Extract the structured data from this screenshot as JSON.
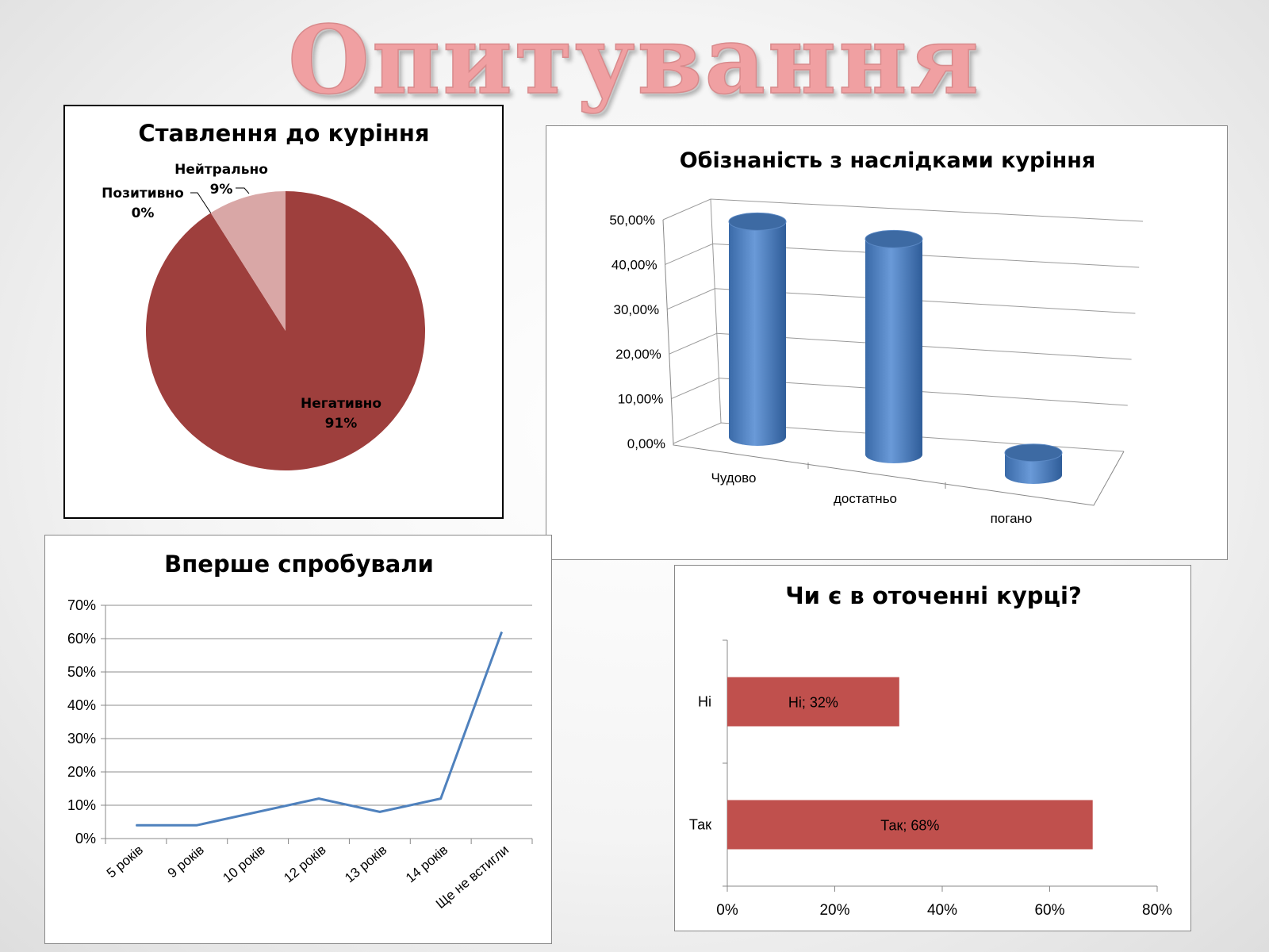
{
  "slide": {
    "title": "Опитування"
  },
  "chart_data": [
    {
      "type": "pie",
      "title": "Ставлення до куріння",
      "slices": [
        {
          "name": "Негативно",
          "value": 91,
          "label": "91%",
          "color": "#9e3f3d"
        },
        {
          "name": "Позитивно",
          "value": 0,
          "label": "0%",
          "color": "#c0504d"
        },
        {
          "name": "Нейтрально",
          "value": 9,
          "label": "9%",
          "color": "#d9a7a6"
        }
      ]
    },
    {
      "type": "bar",
      "style": "3d-cylinder",
      "title": "Обізнаність з наслідками куріння",
      "categories": [
        "Чудово",
        "достатньо",
        "погано"
      ],
      "values": [
        48,
        48,
        5
      ],
      "ylim": [
        0,
        50
      ],
      "yticks": [
        "0,00%",
        "10,00%",
        "20,00%",
        "30,00%",
        "40,00%",
        "50,00%"
      ],
      "color": "#4f81bd",
      "grid": true
    },
    {
      "type": "line",
      "title": "Вперше спробували",
      "categories": [
        "5 років",
        "9 років",
        "10 років",
        "12 років",
        "13 років",
        "14 років",
        "Ще не встигли"
      ],
      "values": [
        4,
        4,
        8,
        12,
        8,
        12,
        62
      ],
      "ylim": [
        0,
        70
      ],
      "yticks": [
        "0%",
        "10%",
        "20%",
        "30%",
        "40%",
        "50%",
        "60%",
        "70%"
      ],
      "color": "#4f81bd",
      "grid": true
    },
    {
      "type": "bar",
      "orientation": "horizontal",
      "title": "Чи є в оточенні курці?",
      "categories": [
        "Ні",
        "Так"
      ],
      "values": [
        32,
        68
      ],
      "data_labels": [
        "Ні; 32%",
        "Так; 68%"
      ],
      "xlim": [
        0,
        80
      ],
      "xticks": [
        "0%",
        "20%",
        "40%",
        "60%",
        "80%"
      ],
      "color": "#c0504d"
    }
  ]
}
